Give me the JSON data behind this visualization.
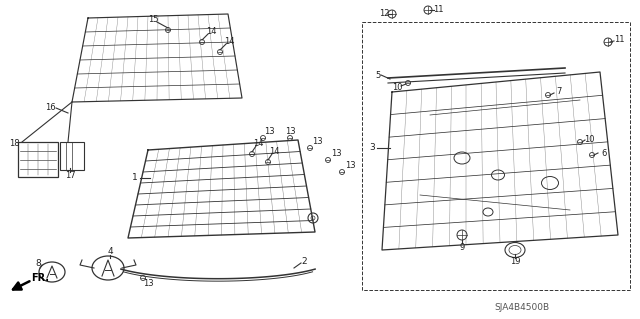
{
  "bg_color": "#ffffff",
  "fig_width": 6.4,
  "fig_height": 3.19,
  "diagram_code": "SJA4B4500B",
  "line_color": "#333333",
  "text_color": "#222222",
  "dim_color": "#555555"
}
